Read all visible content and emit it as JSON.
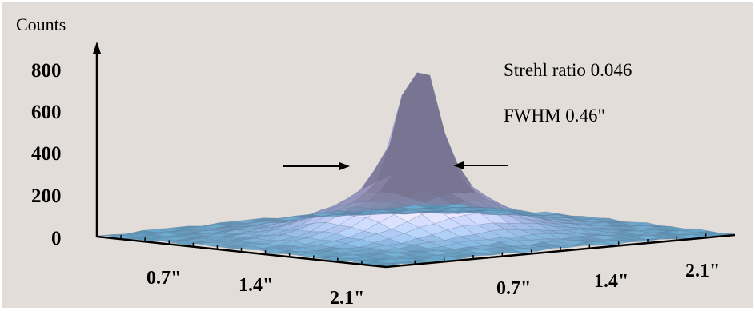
{
  "chart_data": {
    "type": "surface3d",
    "title": "",
    "ylabel": "Counts",
    "z_ticks": [
      0,
      200,
      400,
      600,
      800
    ],
    "zlim": [
      0,
      850
    ],
    "x_axis": {
      "label": "",
      "ticks": [
        "0.7\"",
        "1.4\"",
        "2.1\""
      ],
      "range_arcsec": [
        0,
        2.1
      ]
    },
    "y_axis": {
      "label": "",
      "ticks": [
        "0.7\"",
        "1.4\"",
        "2.1\""
      ],
      "range_arcsec": [
        0,
        2.1
      ]
    },
    "peak": {
      "counts": 780,
      "x_arcsec": 1.05,
      "y_arcsec": 1.05
    },
    "fwhm_arrows": {
      "level_counts": 390
    },
    "annotations": [
      {
        "id": "strehl",
        "text": "Strehl ratio 0.046"
      },
      {
        "id": "fwhm",
        "text": "FWHM 0.46\""
      }
    ],
    "grid_points": 23,
    "grid": false,
    "legend": "none",
    "colors": {
      "background": "#e2ddd8",
      "frame": "#ffffff",
      "base_low": "#5aa8c8",
      "peak_high": "#b9b2e0",
      "highlight": "#f4f0c8",
      "axis": "#000000"
    }
  }
}
